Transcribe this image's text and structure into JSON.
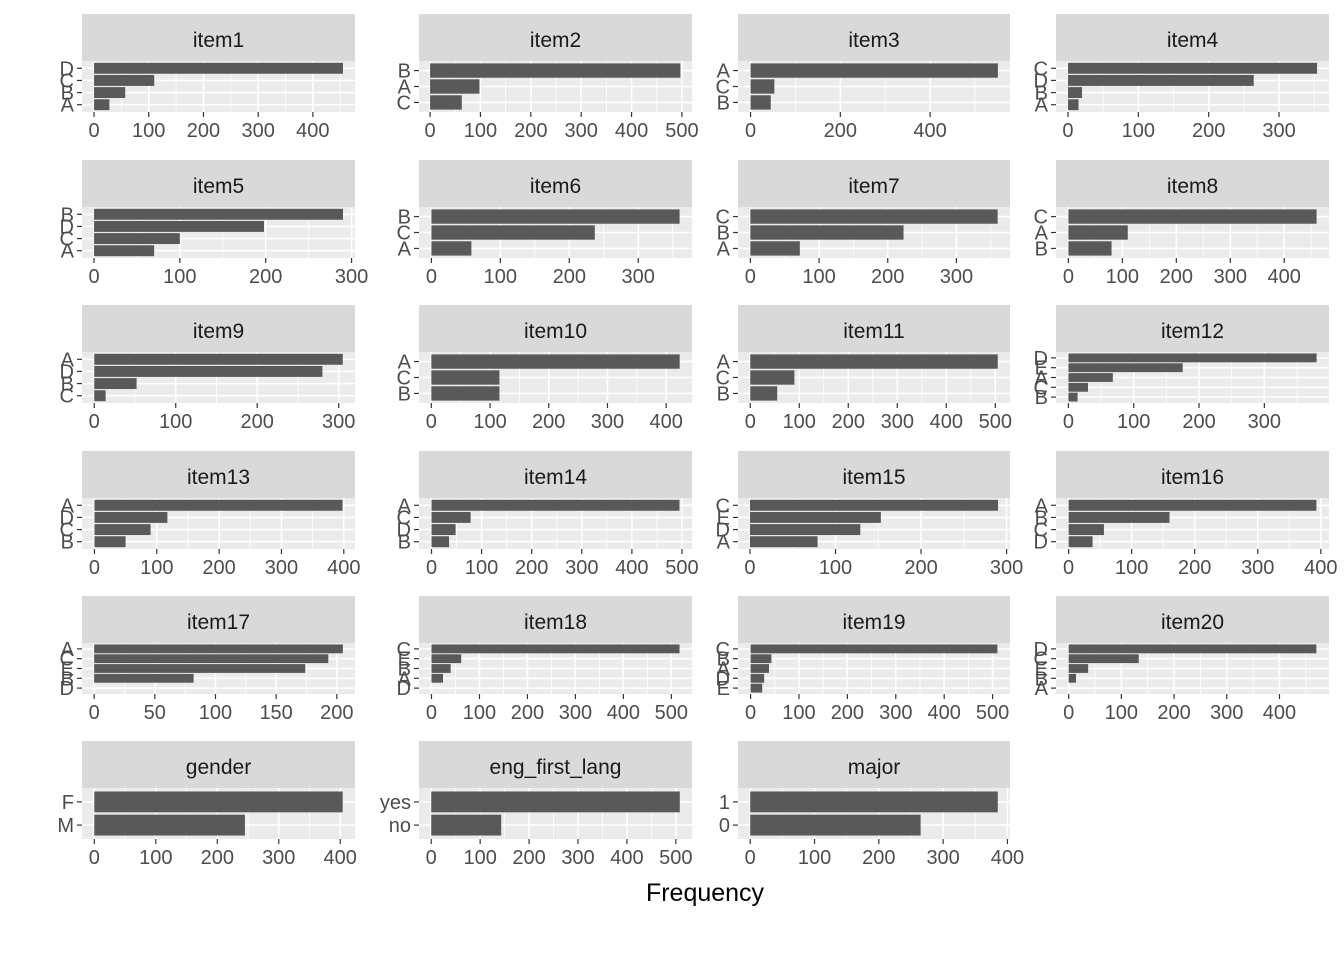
{
  "xlabel": "Frequency",
  "colors": {
    "bar": "#595959",
    "panel": "#ebebeb",
    "strip": "#d9d9d9",
    "grid": "#ffffff",
    "tick": "#4d4d4d",
    "title": "#1a1a1a"
  },
  "chart_data": [
    {
      "type": "bar",
      "orientation": "horizontal",
      "title": "item1",
      "categories": [
        "D",
        "C",
        "B",
        "A"
      ],
      "values": [
        455,
        110,
        57,
        28
      ],
      "xlim": [
        -22,
        477
      ],
      "xticks": [
        0,
        100,
        200,
        300,
        400
      ]
    },
    {
      "type": "bar",
      "orientation": "horizontal",
      "title": "item2",
      "categories": [
        "B",
        "A",
        "C"
      ],
      "values": [
        497,
        98,
        63
      ],
      "xlim": [
        -22,
        520
      ],
      "xticks": [
        0,
        100,
        200,
        300,
        400,
        500
      ]
    },
    {
      "type": "bar",
      "orientation": "horizontal",
      "title": "item3",
      "categories": [
        "A",
        "C",
        "B"
      ],
      "values": [
        551,
        53,
        45
      ],
      "xlim": [
        -28,
        578
      ],
      "xticks": [
        0,
        200,
        400
      ]
    },
    {
      "type": "bar",
      "orientation": "horizontal",
      "title": "item4",
      "categories": [
        "C",
        "D",
        "B",
        "A"
      ],
      "values": [
        354,
        264,
        20,
        15
      ],
      "xlim": [
        -17,
        371
      ],
      "xticks": [
        0,
        100,
        200,
        300
      ]
    },
    {
      "type": "bar",
      "orientation": "horizontal",
      "title": "item5",
      "categories": [
        "B",
        "D",
        "C",
        "A"
      ],
      "values": [
        290,
        198,
        100,
        70
      ],
      "xlim": [
        -14,
        304
      ],
      "xticks": [
        0,
        100,
        200,
        300
      ]
    },
    {
      "type": "bar",
      "orientation": "horizontal",
      "title": "item6",
      "categories": [
        "B",
        "C",
        "A"
      ],
      "values": [
        360,
        237,
        58
      ],
      "xlim": [
        -18,
        378
      ],
      "xticks": [
        0,
        100,
        200,
        300
      ]
    },
    {
      "type": "bar",
      "orientation": "horizontal",
      "title": "item7",
      "categories": [
        "C",
        "B",
        "A"
      ],
      "values": [
        360,
        223,
        72
      ],
      "xlim": [
        -18,
        378
      ],
      "xticks": [
        0,
        100,
        200,
        300
      ]
    },
    {
      "type": "bar",
      "orientation": "horizontal",
      "title": "item8",
      "categories": [
        "C",
        "A",
        "B"
      ],
      "values": [
        460,
        110,
        80
      ],
      "xlim": [
        -23,
        483
      ],
      "xticks": [
        0,
        100,
        200,
        300,
        400
      ]
    },
    {
      "type": "bar",
      "orientation": "horizontal",
      "title": "item9",
      "categories": [
        "A",
        "D",
        "B",
        "C"
      ],
      "values": [
        305,
        280,
        52,
        14
      ],
      "xlim": [
        -15,
        320
      ],
      "xticks": [
        0,
        100,
        200,
        300
      ]
    },
    {
      "type": "bar",
      "orientation": "horizontal",
      "title": "item10",
      "categories": [
        "A",
        "C",
        "B"
      ],
      "values": [
        423,
        116,
        116
      ],
      "xlim": [
        -21,
        444
      ],
      "xticks": [
        0,
        100,
        200,
        300,
        400
      ]
    },
    {
      "type": "bar",
      "orientation": "horizontal",
      "title": "item11",
      "categories": [
        "A",
        "C",
        "B"
      ],
      "values": [
        505,
        90,
        55
      ],
      "xlim": [
        -25,
        530
      ],
      "xticks": [
        0,
        100,
        200,
        300,
        400,
        500
      ]
    },
    {
      "type": "bar",
      "orientation": "horizontal",
      "title": "item12",
      "categories": [
        "D",
        "E",
        "A",
        "C",
        "B"
      ],
      "values": [
        380,
        175,
        68,
        30,
        14
      ],
      "xlim": [
        -19,
        399
      ],
      "xticks": [
        0,
        100,
        200,
        300
      ]
    },
    {
      "type": "bar",
      "orientation": "horizontal",
      "title": "item13",
      "categories": [
        "A",
        "D",
        "C",
        "B"
      ],
      "values": [
        398,
        117,
        90,
        50
      ],
      "xlim": [
        -20,
        418
      ],
      "xticks": [
        0,
        100,
        200,
        300,
        400
      ]
    },
    {
      "type": "bar",
      "orientation": "horizontal",
      "title": "item14",
      "categories": [
        "A",
        "C",
        "D",
        "B"
      ],
      "values": [
        495,
        78,
        48,
        35
      ],
      "xlim": [
        -25,
        520
      ],
      "xticks": [
        0,
        100,
        200,
        300,
        400,
        500
      ]
    },
    {
      "type": "bar",
      "orientation": "horizontal",
      "title": "item15",
      "categories": [
        "C",
        "E",
        "D",
        "A"
      ],
      "values": [
        290,
        153,
        129,
        79
      ],
      "xlim": [
        -14,
        304
      ],
      "xticks": [
        0,
        100,
        200,
        300
      ]
    },
    {
      "type": "bar",
      "orientation": "horizontal",
      "title": "item16",
      "categories": [
        "A",
        "B",
        "C",
        "D"
      ],
      "values": [
        393,
        160,
        56,
        38
      ],
      "xlim": [
        -20,
        413
      ],
      "xticks": [
        0,
        100,
        200,
        300,
        400
      ]
    },
    {
      "type": "bar",
      "orientation": "horizontal",
      "title": "item17",
      "categories": [
        "A",
        "C",
        "E",
        "B",
        "D"
      ],
      "values": [
        205,
        193,
        174,
        82,
        0
      ],
      "xlim": [
        -10,
        215
      ],
      "xticks": [
        0,
        50,
        100,
        150,
        200
      ]
    },
    {
      "type": "bar",
      "orientation": "horizontal",
      "title": "item18",
      "categories": [
        "C",
        "E",
        "B",
        "A",
        "D"
      ],
      "values": [
        517,
        62,
        40,
        24,
        0
      ],
      "xlim": [
        -26,
        543
      ],
      "xticks": [
        0,
        100,
        200,
        300,
        400,
        500
      ]
    },
    {
      "type": "bar",
      "orientation": "horizontal",
      "title": "item19",
      "categories": [
        "C",
        "B",
        "A",
        "D",
        "E"
      ],
      "values": [
        510,
        43,
        38,
        28,
        24
      ],
      "xlim": [
        -26,
        536
      ],
      "xticks": [
        0,
        100,
        200,
        300,
        400,
        500
      ]
    },
    {
      "type": "bar",
      "orientation": "horizontal",
      "title": "item20",
      "categories": [
        "D",
        "C",
        "E",
        "B",
        "A"
      ],
      "values": [
        470,
        133,
        37,
        14,
        0
      ],
      "xlim": [
        -24,
        494
      ],
      "xticks": [
        0,
        100,
        200,
        300,
        400
      ]
    },
    {
      "type": "bar",
      "orientation": "horizontal",
      "title": "gender",
      "categories": [
        "F",
        "M"
      ],
      "values": [
        404,
        245
      ],
      "xlim": [
        -20,
        424
      ],
      "xticks": [
        0,
        100,
        200,
        300,
        400
      ]
    },
    {
      "type": "bar",
      "orientation": "horizontal",
      "title": "eng_first_lang",
      "categories": [
        "yes",
        "no"
      ],
      "values": [
        508,
        143
      ],
      "xlim": [
        -25,
        533
      ],
      "xticks": [
        0,
        100,
        200,
        300,
        400,
        500
      ]
    },
    {
      "type": "bar",
      "orientation": "horizontal",
      "title": "major",
      "categories": [
        "1",
        "0"
      ],
      "values": [
        385,
        265
      ],
      "xlim": [
        -19,
        404
      ],
      "xticks": [
        0,
        100,
        200,
        300,
        400
      ]
    }
  ]
}
